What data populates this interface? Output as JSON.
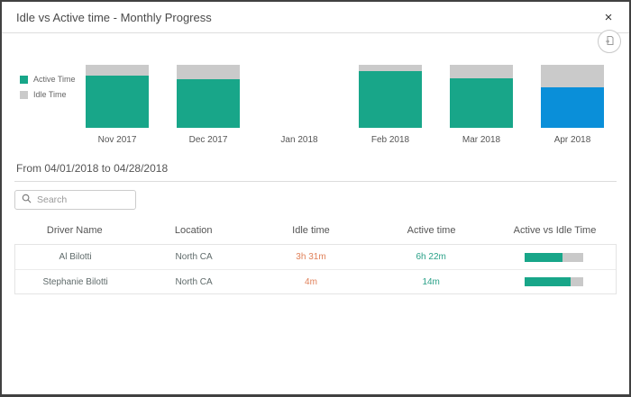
{
  "modal": {
    "title": "Idle vs Active time - Monthly Progress",
    "close_label": "×"
  },
  "icons": {
    "close": "x-close",
    "export": "export-report-circle",
    "search": "magnifier"
  },
  "chart_data": {
    "type": "bar",
    "stacked": true,
    "categories": [
      "Nov 2017",
      "Dec 2017",
      "Jan 2018",
      "Feb 2018",
      "Mar 2018",
      "Apr 2018"
    ],
    "series": [
      {
        "name": "Active Time",
        "values_pct": [
          83,
          77,
          0,
          90,
          79,
          64
        ]
      },
      {
        "name": "Idle Time",
        "values_pct": [
          17,
          23,
          0,
          10,
          21,
          36
        ]
      }
    ],
    "highlighted_category": "Apr 2018",
    "colors": {
      "active": "#18a689",
      "idle": "#cacaca",
      "active_highlight": "#0a8fd9"
    },
    "legend": [
      {
        "label": "Active Time",
        "color": "#18a689"
      },
      {
        "label": "Idle Time",
        "color": "#cacaca"
      }
    ],
    "legend_position": "left",
    "ylim": [
      0,
      100
    ],
    "grid": false
  },
  "period": {
    "label": "From 04/01/2018 to 04/28/2018"
  },
  "search": {
    "placeholder": "Search"
  },
  "table": {
    "columns": [
      "Driver Name",
      "Location",
      "Idle time",
      "Active time",
      "Active vs Idle Time"
    ],
    "rows": [
      {
        "driver": "Al Bilotti",
        "location": "North CA",
        "idle": "3h 31m",
        "active": "6h 22m",
        "active_pct": 64
      },
      {
        "driver": "Stephanie Bilotti",
        "location": "North CA",
        "idle": "4m",
        "active": "14m",
        "active_pct": 78
      }
    ]
  },
  "colors": {
    "accent_teal": "#18a689",
    "accent_blue": "#0a8fd9",
    "bar_gray": "#cacaca",
    "idle_text": "#e0815a",
    "active_text": "#2aa188"
  }
}
